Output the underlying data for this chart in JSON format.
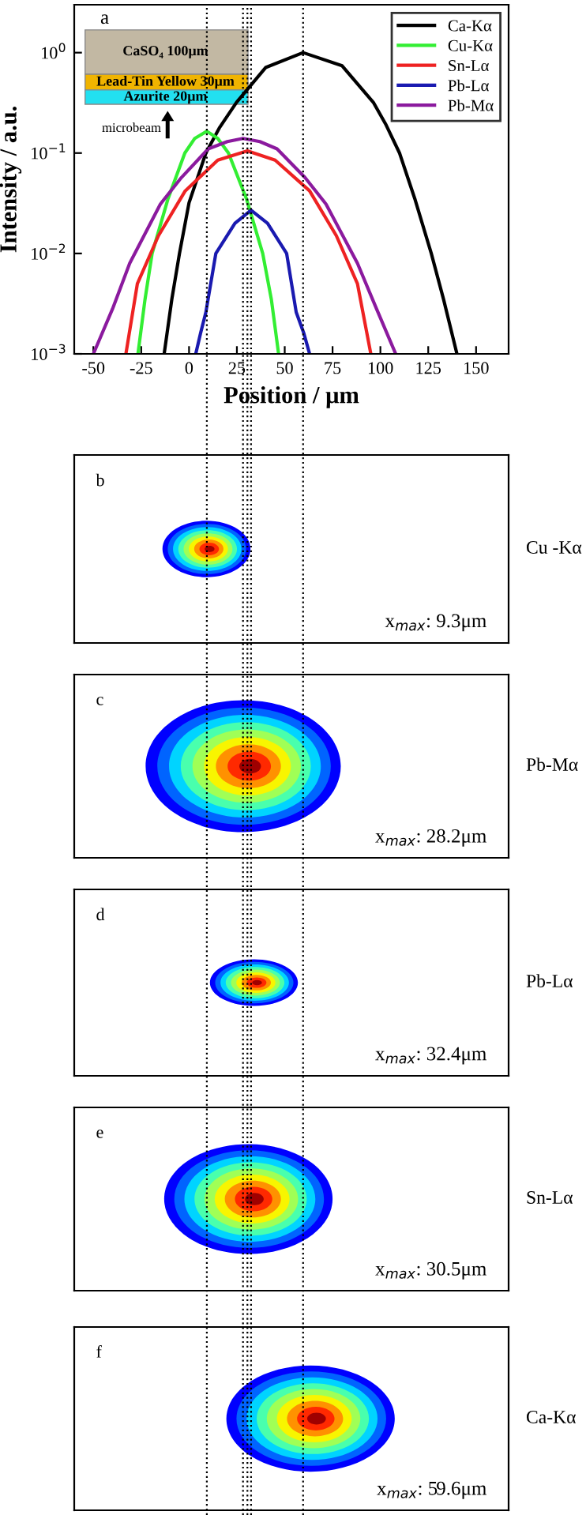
{
  "chart_data": [
    {
      "type": "line",
      "xlabel": "Position / μm",
      "ylabel": "Intensity / a.u.",
      "log": "y",
      "grid": false,
      "legend": "top right",
      "marker": "none",
      "line_style": "solid",
      "xlim": [
        -60,
        167
      ],
      "xticks": [
        -50,
        -25,
        0,
        25,
        50,
        75,
        100,
        125,
        150
      ],
      "ylim": [
        0.001,
        3
      ],
      "yticks": [
        {
          "value": 0.001,
          "label": "10$^{−3}$"
        },
        {
          "value": 0.01,
          "label": "10$^{−2}$"
        },
        {
          "value": 0.1,
          "label": "10$^{−1}$"
        },
        {
          "value": 1,
          "label": "10$^{0}$"
        }
      ],
      "series": [
        {
          "name": "Ca-Kα",
          "color": "#000000",
          "x": [
            -13,
            -9,
            -5,
            0,
            8.8,
            16,
            24.8,
            40,
            59.6,
            80,
            96.3,
            103,
            110,
            118,
            126.6,
            133,
            140
          ],
          "values": [
            0.001,
            0.0035,
            0.01,
            0.032,
            0.1,
            0.18,
            0.32,
            0.71,
            1.0,
            0.74,
            0.32,
            0.19,
            0.1,
            0.035,
            0.01,
            0.0035,
            0.001
          ]
        },
        {
          "name": "Cu-Kα",
          "color": "#33ee33",
          "x": [
            -26.7,
            -23,
            -19.3,
            -11,
            -2.2,
            3,
            9.3,
            15,
            20.6,
            30,
            38.5,
            43,
            46.8
          ],
          "values": [
            0.001,
            0.0035,
            0.01,
            0.035,
            0.1,
            0.14,
            0.165,
            0.14,
            0.1,
            0.035,
            0.01,
            0.0035,
            0.001
          ]
        },
        {
          "name": "Sn-Lα",
          "color": "#ee2222",
          "x": [
            -33,
            -27,
            -16,
            -2,
            15,
            30.5,
            45,
            63,
            77,
            88,
            95
          ],
          "values": [
            0.001,
            0.005,
            0.015,
            0.042,
            0.085,
            0.105,
            0.085,
            0.042,
            0.015,
            0.005,
            0.001
          ]
        },
        {
          "name": "Pb-Lα",
          "color": "#1a1ab0",
          "x": [
            3.5,
            6,
            8.8,
            14,
            24,
            32.4,
            41,
            51,
            56,
            60,
            63
          ],
          "values": [
            0.001,
            0.0016,
            0.0026,
            0.01,
            0.02,
            0.027,
            0.02,
            0.01,
            0.0026,
            0.0016,
            0.001
          ]
        },
        {
          "name": "Pb-Mα",
          "color": "#8b1a9e",
          "x": [
            -50,
            -40,
            -31,
            -15,
            -4,
            10,
            20,
            28.2,
            37,
            46,
            60.6,
            71.6,
            88,
            98,
            108
          ],
          "values": [
            0.001,
            0.0028,
            0.008,
            0.031,
            0.057,
            0.11,
            0.13,
            0.14,
            0.13,
            0.11,
            0.057,
            0.031,
            0.008,
            0.0028,
            0.001
          ]
        }
      ],
      "ref_lines": [
        {
          "axis": "x",
          "value": 9.3,
          "color": "#000000",
          "line_style": "dotted"
        },
        {
          "axis": "x",
          "value": 28.2,
          "color": "#000000",
          "line_style": "dotted"
        },
        {
          "axis": "x",
          "value": 30.5,
          "color": "#000000",
          "line_style": "dotted"
        },
        {
          "axis": "x",
          "value": 32.4,
          "color": "#000000",
          "line_style": "dotted"
        },
        {
          "axis": "x",
          "value": 59.6,
          "color": "#000000",
          "line_style": "dotted"
        }
      ],
      "annotations": [
        "a",
        "CaSO₄ 100μm",
        "Lead-Tin Yellow 30μm",
        "Azurite 20μm",
        "microbeam"
      ]
    },
    {
      "type": "other",
      "annotations": [
        "b",
        "Cu -Kα",
        "x$_{max}$: 9.3μm"
      ]
    },
    {
      "type": "other",
      "annotations": [
        "c",
        "Pb-Mα",
        "x$_{max}$: 28.2μm"
      ]
    },
    {
      "type": "other",
      "annotations": [
        "d",
        "Pb-Lα",
        "x$_{max}$: 32.4μm"
      ]
    },
    {
      "type": "other",
      "annotations": [
        "e",
        "Sn-Lα",
        "x$_{max}$: 30.5μm"
      ]
    },
    {
      "type": "other",
      "annotations": [
        "f",
        "Ca-Kα",
        "x$_{max}$: 59.6μm"
      ]
    }
  ]
}
